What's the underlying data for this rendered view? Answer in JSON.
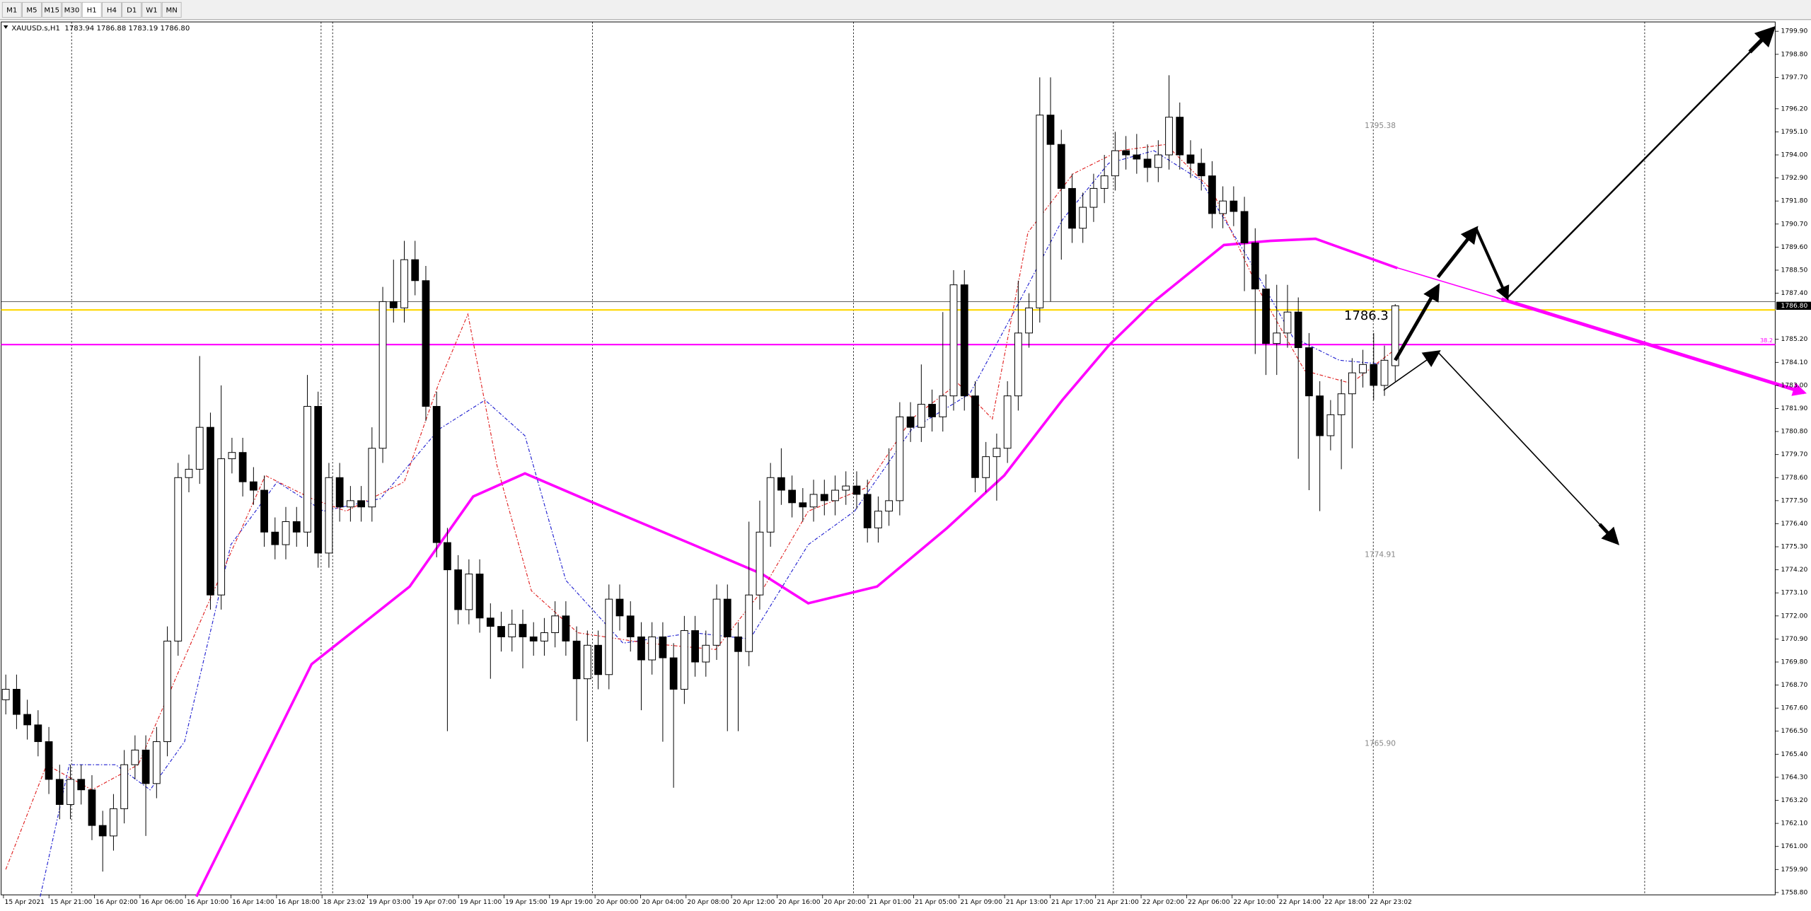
{
  "chart_data": {
    "type": "candlestick",
    "timeframes": [
      "M1",
      "M5",
      "M15",
      "M30",
      "H1",
      "H4",
      "D1",
      "W1",
      "MN"
    ],
    "active_timeframe": "H1",
    "symbol": "XAUUSD.s,H1",
    "ohlc": "1783.94 1786.88 1783.19 1786.80",
    "ylim": [
      1758.69,
      1800.4
    ],
    "yticks": [
      {
        "value": 1799.9,
        "label": "1799.90"
      },
      {
        "value": 1798.8,
        "label": "1798.80"
      },
      {
        "value": 1797.7,
        "label": "1797.70"
      },
      {
        "value": 1796.2,
        "label": "1796.20"
      },
      {
        "value": 1795.1,
        "label": "1795.10"
      },
      {
        "value": 1794,
        "label": "1794.00"
      },
      {
        "value": 1792.9,
        "label": "1792.90"
      },
      {
        "value": 1791.8,
        "label": "1791.80"
      },
      {
        "value": 1790.7,
        "label": "1790.70"
      },
      {
        "value": 1789.6,
        "label": "1789.60"
      },
      {
        "value": 1788.5,
        "label": "1788.50"
      },
      {
        "value": 1787.4,
        "label": "1787.40"
      },
      {
        "value": 1785.2,
        "label": "1785.20"
      },
      {
        "value": 1784.1,
        "label": "1784.10"
      },
      {
        "value": 1783,
        "label": "1783.00"
      },
      {
        "value": 1781.9,
        "label": "1781.90"
      },
      {
        "value": 1780.8,
        "label": "1780.80"
      },
      {
        "value": 1779.7,
        "label": "1779.70"
      },
      {
        "value": 1778.6,
        "label": "1778.60"
      },
      {
        "value": 1777.5,
        "label": "1777.50"
      },
      {
        "value": 1776.4,
        "label": "1776.40"
      },
      {
        "value": 1775.3,
        "label": "1775.30"
      },
      {
        "value": 1774.2,
        "label": "1774.20"
      },
      {
        "value": 1773.1,
        "label": "1773.10"
      },
      {
        "value": 1772,
        "label": "1772.00"
      },
      {
        "value": 1770.9,
        "label": "1770.90"
      },
      {
        "value": 1769.8,
        "label": "1769.80"
      },
      {
        "value": 1768.7,
        "label": "1768.70"
      },
      {
        "value": 1767.6,
        "label": "1767.60"
      },
      {
        "value": 1766.5,
        "label": "1766.50"
      },
      {
        "value": 1765.4,
        "label": "1765.40"
      },
      {
        "value": 1764.3,
        "label": "1764.30"
      },
      {
        "value": 1763.2,
        "label": "1763.20"
      },
      {
        "value": 1762.1,
        "label": "1762.10"
      },
      {
        "value": 1761,
        "label": "1761.00"
      },
      {
        "value": 1759.9,
        "label": "1759.90"
      },
      {
        "value": 1758.8,
        "label": "1758.80"
      }
    ],
    "current_price": {
      "value": 1786.8,
      "label": "1786.80"
    },
    "x_labels": [
      "15 Apr 2021",
      "15 Apr 21:00",
      "16 Apr 02:00",
      "16 Apr 06:00",
      "16 Apr 10:00",
      "16 Apr 14:00",
      "16 Apr 18:00",
      "18 Apr 23:02",
      "19 Apr 03:00",
      "19 Apr 07:00",
      "19 Apr 11:00",
      "19 Apr 15:00",
      "19 Apr 19:00",
      "20 Apr 00:00",
      "20 Apr 04:00",
      "20 Apr 08:00",
      "20 Apr 12:00",
      "20 Apr 16:00",
      "20 Apr 20:00",
      "21 Apr 01:00",
      "21 Apr 05:00",
      "21 Apr 09:00",
      "21 Apr 13:00",
      "21 Apr 17:00",
      "21 Apr 21:00",
      "22 Apr 02:00",
      "22 Apr 06:00",
      "22 Apr 10:00",
      "22 Apr 14:00",
      "22 Apr 18:00",
      "22 Apr 23:02"
    ],
    "candles": [
      [
        1768.0,
        1769.2,
        1767.3,
        1768.5
      ],
      [
        1768.5,
        1769.2,
        1766.6,
        1767.3
      ],
      [
        1767.3,
        1768.0,
        1766.1,
        1766.8
      ],
      [
        1766.8,
        1767.5,
        1765.3,
        1766.0
      ],
      [
        1766.0,
        1766.7,
        1763.5,
        1764.2
      ],
      [
        1764.2,
        1764.9,
        1762.3,
        1763.0
      ],
      [
        1763.0,
        1764.9,
        1762.3,
        1764.2
      ],
      [
        1764.2,
        1764.9,
        1763.0,
        1763.7
      ],
      [
        1763.7,
        1764.4,
        1761.3,
        1762.0
      ],
      [
        1762.0,
        1762.7,
        1759.8,
        1761.5
      ],
      [
        1761.5,
        1763.5,
        1760.8,
        1762.8
      ],
      [
        1762.8,
        1765.6,
        1762.1,
        1764.9
      ],
      [
        1764.9,
        1766.3,
        1764.2,
        1765.6
      ],
      [
        1765.6,
        1766.3,
        1761.5,
        1764.0
      ],
      [
        1764.0,
        1766.7,
        1763.3,
        1766.0
      ],
      [
        1766.0,
        1771.5,
        1765.3,
        1770.8
      ],
      [
        1770.8,
        1779.3,
        1770.1,
        1778.6
      ],
      [
        1778.6,
        1779.7,
        1777.9,
        1779.0
      ],
      [
        1779.0,
        1784.4,
        1778.3,
        1781.0
      ],
      [
        1781.0,
        1781.7,
        1772.3,
        1773.0
      ],
      [
        1773.0,
        1783.0,
        1772.3,
        1779.5
      ],
      [
        1779.5,
        1780.5,
        1778.8,
        1779.8
      ],
      [
        1779.8,
        1780.5,
        1777.7,
        1778.4
      ],
      [
        1778.4,
        1779.1,
        1777.3,
        1778.0
      ],
      [
        1778.0,
        1778.7,
        1775.3,
        1776.0
      ],
      [
        1776.0,
        1776.7,
        1774.7,
        1775.4
      ],
      [
        1775.4,
        1777.2,
        1774.7,
        1776.5
      ],
      [
        1776.5,
        1777.2,
        1775.3,
        1776.0
      ],
      [
        1776.0,
        1783.5,
        1775.3,
        1782.0
      ],
      [
        1782.0,
        1782.7,
        1774.3,
        1775.0
      ],
      [
        1775.0,
        1779.3,
        1774.3,
        1778.6
      ],
      [
        1778.6,
        1779.3,
        1776.5,
        1777.2
      ],
      [
        1777.2,
        1778.2,
        1776.5,
        1777.5
      ],
      [
        1777.5,
        1778.2,
        1776.5,
        1777.2
      ],
      [
        1777.2,
        1781.0,
        1776.5,
        1780.0
      ],
      [
        1780.0,
        1787.7,
        1779.3,
        1787.0
      ],
      [
        1787.0,
        1789.0,
        1786.0,
        1786.7
      ],
      [
        1786.7,
        1789.9,
        1786.0,
        1789.0
      ],
      [
        1789.0,
        1789.9,
        1787.3,
        1788.0
      ],
      [
        1788.0,
        1788.7,
        1781.3,
        1782.0
      ],
      [
        1782.0,
        1782.7,
        1774.8,
        1775.5
      ],
      [
        1775.5,
        1776.2,
        1766.5,
        1774.2
      ],
      [
        1774.2,
        1774.9,
        1771.6,
        1772.3
      ],
      [
        1772.3,
        1774.7,
        1771.6,
        1774.0
      ],
      [
        1774.0,
        1774.7,
        1771.2,
        1771.9
      ],
      [
        1771.9,
        1772.6,
        1769.0,
        1771.5
      ],
      [
        1771.5,
        1772.2,
        1770.3,
        1771.0
      ],
      [
        1771.0,
        1772.3,
        1770.3,
        1771.6
      ],
      [
        1771.6,
        1772.3,
        1769.5,
        1771.0
      ],
      [
        1771.0,
        1771.7,
        1770.1,
        1770.8
      ],
      [
        1770.8,
        1771.9,
        1770.1,
        1771.2
      ],
      [
        1771.2,
        1772.7,
        1770.5,
        1772.0
      ],
      [
        1772.0,
        1772.7,
        1770.1,
        1770.8
      ],
      [
        1770.8,
        1771.5,
        1767.0,
        1769.0
      ],
      [
        1769.0,
        1771.3,
        1766.0,
        1770.6
      ],
      [
        1770.6,
        1771.3,
        1768.5,
        1769.2
      ],
      [
        1769.2,
        1773.5,
        1768.5,
        1772.8
      ],
      [
        1772.8,
        1773.5,
        1771.3,
        1772.0
      ],
      [
        1772.0,
        1772.7,
        1770.3,
        1771.0
      ],
      [
        1771.0,
        1771.7,
        1767.5,
        1769.9
      ],
      [
        1769.9,
        1771.7,
        1769.2,
        1771.0
      ],
      [
        1771.0,
        1771.7,
        1766.0,
        1770.0
      ],
      [
        1770.0,
        1770.7,
        1763.8,
        1768.5
      ],
      [
        1768.5,
        1772.0,
        1767.8,
        1771.3
      ],
      [
        1771.3,
        1772.0,
        1769.1,
        1769.8
      ],
      [
        1769.8,
        1771.3,
        1769.1,
        1770.6
      ],
      [
        1770.6,
        1773.5,
        1769.9,
        1772.8
      ],
      [
        1772.8,
        1773.5,
        1766.5,
        1771.0
      ],
      [
        1771.0,
        1771.7,
        1766.5,
        1770.3
      ],
      [
        1770.3,
        1776.5,
        1769.6,
        1773.0
      ],
      [
        1773.0,
        1777.5,
        1772.3,
        1776.0
      ],
      [
        1776.0,
        1779.3,
        1775.3,
        1778.6
      ],
      [
        1778.6,
        1780.0,
        1777.3,
        1778.0
      ],
      [
        1778.0,
        1778.7,
        1776.7,
        1777.4
      ],
      [
        1777.4,
        1778.1,
        1776.5,
        1777.2
      ],
      [
        1777.2,
        1778.5,
        1776.5,
        1777.8
      ],
      [
        1777.8,
        1778.5,
        1776.8,
        1777.5
      ],
      [
        1777.5,
        1778.7,
        1776.8,
        1778.0
      ],
      [
        1778.0,
        1778.9,
        1777.3,
        1778.2
      ],
      [
        1778.2,
        1778.9,
        1777.1,
        1777.8
      ],
      [
        1777.8,
        1778.5,
        1775.5,
        1776.2
      ],
      [
        1776.2,
        1777.7,
        1775.5,
        1777.0
      ],
      [
        1777.0,
        1780.0,
        1776.3,
        1777.5
      ],
      [
        1777.5,
        1782.2,
        1776.8,
        1781.5
      ],
      [
        1781.5,
        1782.2,
        1780.3,
        1781.0
      ],
      [
        1781.0,
        1784.0,
        1780.3,
        1782.1
      ],
      [
        1782.1,
        1782.8,
        1780.8,
        1781.5
      ],
      [
        1781.5,
        1786.5,
        1780.8,
        1782.5
      ],
      [
        1782.5,
        1788.5,
        1781.8,
        1787.8
      ],
      [
        1787.8,
        1788.5,
        1781.8,
        1782.5
      ],
      [
        1782.5,
        1783.2,
        1777.9,
        1778.6
      ],
      [
        1778.6,
        1780.3,
        1777.9,
        1779.6
      ],
      [
        1779.6,
        1780.7,
        1777.5,
        1780.0
      ],
      [
        1780.0,
        1783.2,
        1779.3,
        1782.5
      ],
      [
        1782.5,
        1788.0,
        1781.8,
        1785.5
      ],
      [
        1785.5,
        1787.4,
        1784.8,
        1786.7
      ],
      [
        1786.7,
        1797.7,
        1786.0,
        1795.9
      ],
      [
        1795.9,
        1797.7,
        1787.0,
        1794.5
      ],
      [
        1794.5,
        1795.2,
        1789.0,
        1792.4
      ],
      [
        1792.4,
        1793.1,
        1789.8,
        1790.5
      ],
      [
        1790.5,
        1792.2,
        1789.8,
        1791.5
      ],
      [
        1791.5,
        1793.1,
        1790.8,
        1792.4
      ],
      [
        1792.4,
        1794.0,
        1791.7,
        1793.0
      ],
      [
        1793.0,
        1795.1,
        1792.3,
        1794.2
      ],
      [
        1794.2,
        1794.9,
        1793.3,
        1794.0
      ],
      [
        1794.0,
        1795.0,
        1793.1,
        1793.8
      ],
      [
        1793.8,
        1794.5,
        1792.7,
        1793.4
      ],
      [
        1793.4,
        1794.7,
        1792.7,
        1794.0
      ],
      [
        1794.0,
        1797.8,
        1793.3,
        1795.8
      ],
      [
        1795.8,
        1796.5,
        1793.3,
        1794.0
      ],
      [
        1794.0,
        1794.7,
        1792.9,
        1793.6
      ],
      [
        1793.6,
        1794.3,
        1792.3,
        1793.0
      ],
      [
        1793.0,
        1793.7,
        1790.5,
        1791.2
      ],
      [
        1791.2,
        1792.5,
        1790.5,
        1791.8
      ],
      [
        1791.8,
        1792.5,
        1790.6,
        1791.3
      ],
      [
        1791.3,
        1792.0,
        1787.5,
        1789.8
      ],
      [
        1789.8,
        1790.5,
        1784.5,
        1787.6
      ],
      [
        1787.6,
        1788.3,
        1783.5,
        1785.0
      ],
      [
        1785.0,
        1787.8,
        1783.5,
        1785.5
      ],
      [
        1785.5,
        1787.8,
        1784.8,
        1786.5
      ],
      [
        1786.5,
        1787.2,
        1779.5,
        1784.8
      ],
      [
        1784.8,
        1785.5,
        1778.0,
        1782.5
      ],
      [
        1782.5,
        1783.2,
        1777.0,
        1780.6
      ],
      [
        1780.6,
        1782.3,
        1779.9,
        1781.6
      ],
      [
        1781.6,
        1783.3,
        1779.0,
        1782.6
      ],
      [
        1782.6,
        1784.3,
        1780.0,
        1783.6
      ],
      [
        1783.6,
        1784.7,
        1782.9,
        1784.0
      ],
      [
        1784.0,
        1785.5,
        1782.3,
        1783.0
      ],
      [
        1783.0,
        1784.9,
        1782.5,
        1784.2
      ],
      [
        1783.94,
        1786.88,
        1783.19,
        1786.8
      ]
    ],
    "moving_averages": [
      {
        "color": "#ff00ff",
        "width": 2.2,
        "dash": "",
        "x": [
          17.7,
          28.4,
          31.6,
          37.5,
          43.4,
          48.2,
          54.1,
          63.8,
          70.2,
          74.5,
          80.9,
          87.4,
          92.7,
          98.1,
          102.4,
          106.6,
          113.1,
          117.4,
          121.6,
          124.3,
          129.2
        ],
        "values": [
          1758.6,
          1769.7,
          1771.0,
          1773.4,
          1777.7,
          1778.8,
          1777.5,
          1775.4,
          1774.0,
          1772.6,
          1773.4,
          1776.2,
          1778.7,
          1782.3,
          1784.9,
          1787.0,
          1789.7,
          1789.9,
          1790.0,
          1789.5,
          1788.6
        ]
      },
      {
        "color": "#2020d0",
        "width": 0.7,
        "dash": "3 1.5 1 1.5",
        "x": [
          3.2,
          5.9,
          10.2,
          13.4,
          16.6,
          20.9,
          25.2,
          29.5,
          34.8,
          40.2,
          44.5,
          48.2,
          52.0,
          57.3,
          63.8,
          69.1,
          74.5,
          78.8,
          84.1,
          89.5,
          93.8,
          98.1,
          102.4,
          106.6,
          110.9,
          115.2,
          119.5,
          123.8,
          128.1
        ],
        "values": [
          1758.6,
          1764.9,
          1764.9,
          1763.7,
          1766.0,
          1775.4,
          1778.4,
          1777.0,
          1777.6,
          1780.9,
          1782.3,
          1780.6,
          1773.7,
          1770.7,
          1771.2,
          1770.9,
          1775.4,
          1777.0,
          1780.9,
          1782.6,
          1786.7,
          1790.9,
          1793.6,
          1794.2,
          1792.8,
          1789.2,
          1785.3,
          1784.2,
          1784.0
        ]
      },
      {
        "color": "#e02020",
        "width": 0.7,
        "dash": "3 1.5 1 1.5",
        "x": [
          0,
          3.8,
          8.0,
          12.3,
          18.8,
          24.1,
          28.4,
          31.6,
          37.0,
          40.2,
          42.9,
          45.6,
          48.8,
          53.1,
          59.5,
          65.9,
          70.2,
          74.5,
          79.8,
          84.1,
          88.4,
          91.6,
          94.9,
          99.1,
          103.4,
          107.7,
          112.0,
          116.3,
          120.6,
          124.9,
          129.2
        ],
        "values": [
          1759.9,
          1764.9,
          1763.7,
          1764.9,
          1772.6,
          1778.7,
          1777.6,
          1777.0,
          1778.4,
          1783.1,
          1786.4,
          1779.2,
          1773.2,
          1771.2,
          1770.7,
          1770.4,
          1773.2,
          1777.0,
          1778.1,
          1781.4,
          1783.1,
          1781.4,
          1790.3,
          1793.1,
          1794.2,
          1794.5,
          1792.3,
          1787.6,
          1783.7,
          1783.1,
          1784.8
        ]
      }
    ],
    "levels": [
      {
        "value": 1787.0,
        "color": "#000000"
      },
      {
        "value": 1786.6,
        "color": "#ffd700"
      },
      {
        "value": 1784.95,
        "color": "#ff00ff",
        "label": "38.2"
      }
    ],
    "price_marks": [
      1795.38,
      1774.91,
      {
        "value": 1765.9,
        "label": "1765.90"
      }
    ],
    "big_label": 1786.3,
    "grid": false
  }
}
